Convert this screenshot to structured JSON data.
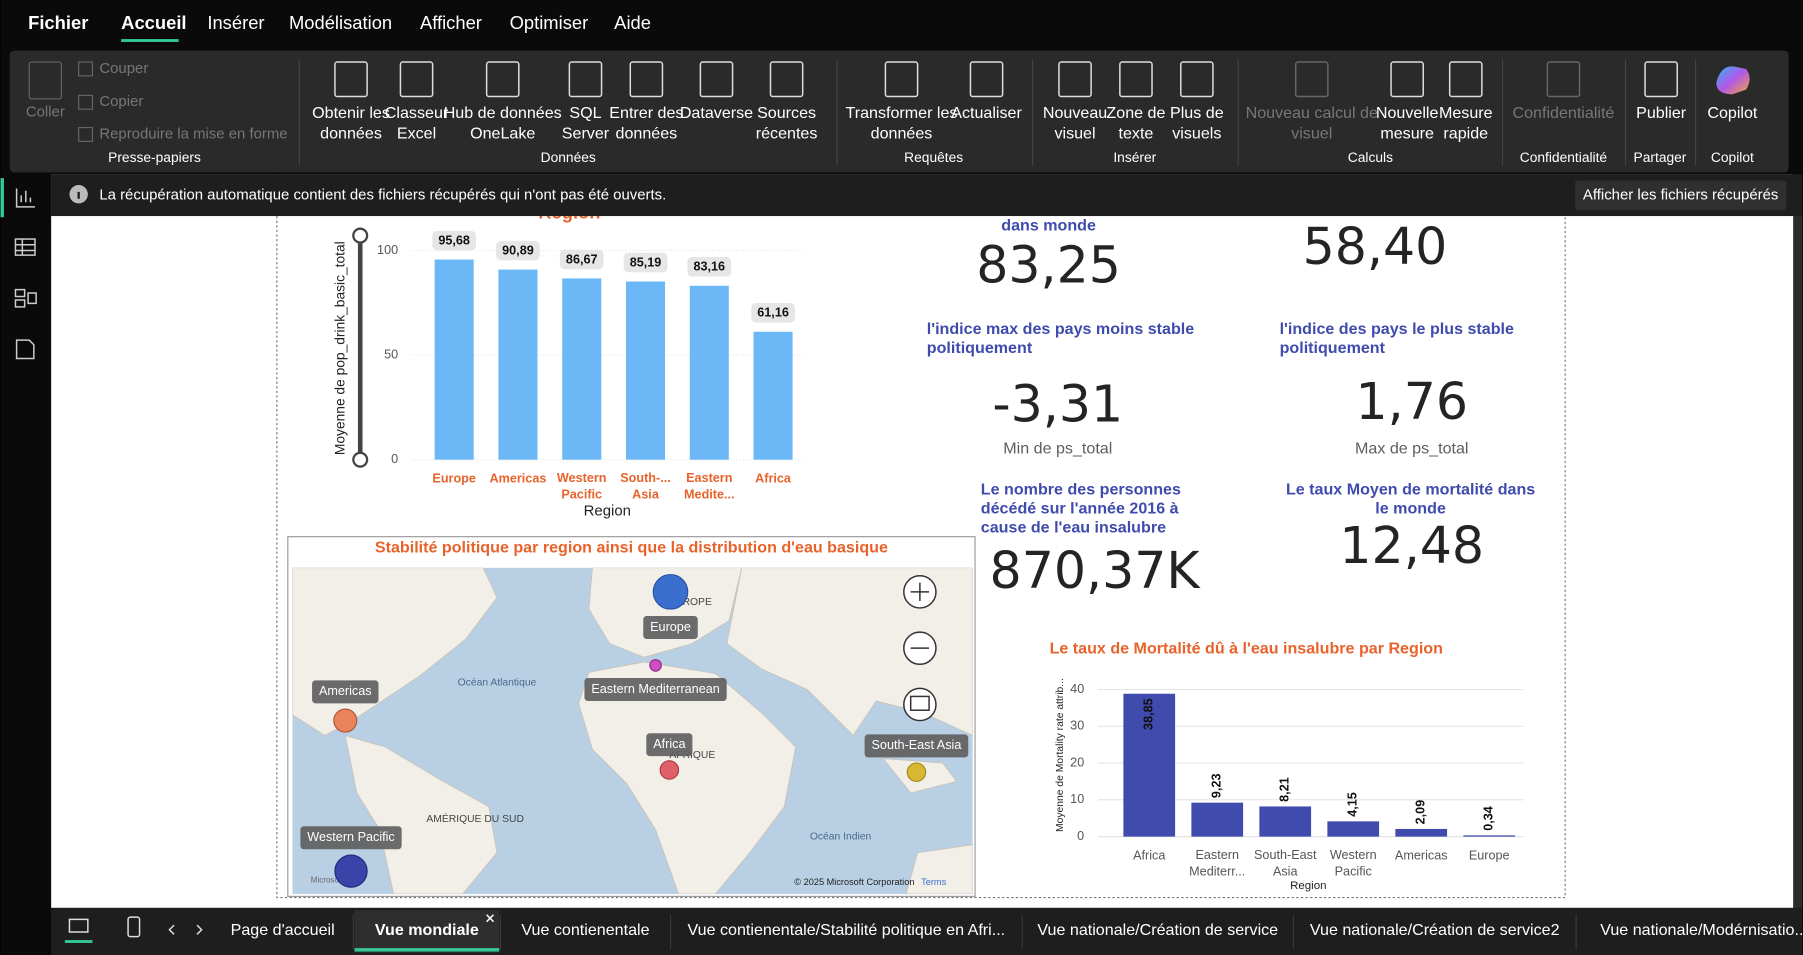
{
  "menu": [
    "Fichier",
    "Accueil",
    "Insérer",
    "Modélisation",
    "Afficher",
    "Optimiser",
    "Aide"
  ],
  "ribbon": {
    "groups": [
      {
        "label": "Presse-papiers",
        "items": [
          [
            "Coller"
          ],
          [
            "Couper"
          ],
          [
            "Copier"
          ],
          [
            "Reproduire la mise en forme"
          ]
        ]
      },
      {
        "label": "Données",
        "items": [
          [
            "Obtenir les",
            "données"
          ],
          [
            "Classeur",
            "Excel"
          ],
          [
            "Hub de données",
            "OneLake"
          ],
          [
            "SQL",
            "Server"
          ],
          [
            "Entrer des",
            "données"
          ],
          [
            "Dataverse"
          ],
          [
            "Sources",
            "récentes"
          ]
        ]
      },
      {
        "label": "Requêtes",
        "items": [
          [
            "Transformer les",
            "données"
          ],
          [
            "Actualiser"
          ]
        ]
      },
      {
        "label": "Insérer",
        "items": [
          [
            "Nouveau",
            "visuel"
          ],
          [
            "Zone de",
            "texte"
          ],
          [
            "Plus de",
            "visuels"
          ]
        ]
      },
      {
        "label": "Calculs",
        "items": [
          [
            "Nouveau calcul de",
            "visuel"
          ],
          [
            "Nouvelle",
            "mesure"
          ],
          [
            "Mesure",
            "rapide"
          ]
        ]
      },
      {
        "label": "Confidentialité",
        "items": [
          [
            "Confidentialité"
          ]
        ]
      },
      {
        "label": "Partager",
        "items": [
          [
            "Publier"
          ]
        ]
      },
      {
        "label": "Copilot",
        "items": [
          [
            "Copilot"
          ]
        ]
      }
    ]
  },
  "notification": {
    "message": "La récupération automatique contient des fichiers récupérés qui n'ont pas été ouverts.",
    "button": "Afficher les fichiers récupérés"
  },
  "chart_data": [
    {
      "type": "bar",
      "title": "Region",
      "x_label": "Region",
      "y_label": "Moyenne de pop_drink_basic_total",
      "categories": [
        "Europe",
        "Americas",
        "Western Pacific",
        "South-... Asia",
        "Eastern Medite...",
        "Africa"
      ],
      "values": [
        95.68,
        90.89,
        86.67,
        85.19,
        83.16,
        61.16
      ],
      "value_labels": [
        "95,68",
        "90,89",
        "86,67",
        "85,19",
        "83,16",
        "61,16"
      ],
      "color": "#6cb8f6",
      "ylim": [
        0,
        100
      ],
      "yticks": [
        0,
        50,
        100
      ],
      "grid": true
    },
    {
      "type": "bar",
      "title": "Le taux de Mortalité dû à l'eau insalubre par Region",
      "x_label": "Region",
      "y_label": "Moyenne de Mortality rate attrib...",
      "categories": [
        "Africa",
        "Eastern Mediterr...",
        "South-East Asia",
        "Western Pacific",
        "Americas",
        "Europe"
      ],
      "values": [
        38.85,
        9.23,
        8.21,
        4.15,
        2.09,
        0.34
      ],
      "value_labels": [
        "38,85",
        "9,23",
        "8,21",
        "4,15",
        "2,09",
        "0,34"
      ],
      "color": "#3f4bad",
      "ylim": [
        0,
        40
      ],
      "yticks": [
        0,
        10,
        20,
        30,
        40
      ],
      "grid": true
    }
  ],
  "cards": [
    {
      "title": "dans monde",
      "value": "83,25"
    },
    {
      "value": "58,40"
    },
    {
      "title": "l'indice max des pays moins stable politiquement",
      "value": "-3,31",
      "subtitle": "Min de ps_total"
    },
    {
      "title": "l'indice des pays le plus stable politiquement",
      "value": "1,76",
      "subtitle": "Max de ps_total"
    },
    {
      "title": "Le nombre des personnes décédé sur l'année 2016 à cause de l'eau insalubre",
      "value": "870,37K"
    },
    {
      "title": "Le taux Moyen de mortalité dans le monde",
      "value": "12,48"
    }
  ],
  "map": {
    "title": "Stabilité politique par region ainsi que la distribution d'eau basique",
    "regions": [
      "Europe",
      "Eastern Mediterranean",
      "Americas",
      "Africa",
      "South-East Asia",
      "Western Pacific"
    ],
    "base_labels": [
      "EUROPE",
      "Océan Atlantique",
      "AFRIQUE",
      "AMÉRIQUE DU SUD",
      "Océan Indien"
    ],
    "copyright": "© 2025 Microsoft Corporation",
    "terms": "Terms",
    "logo": "Microsoft"
  },
  "tabs": [
    "Page d'accueil",
    "Vue mondiale",
    "Vue contienentale",
    "Vue contienentale/Stabilité politique en Afri...",
    "Vue nationale/Création de service",
    "Vue nationale/Création de service2",
    "Vue nationale/Modérnisatio..."
  ],
  "active_tab": 1
}
